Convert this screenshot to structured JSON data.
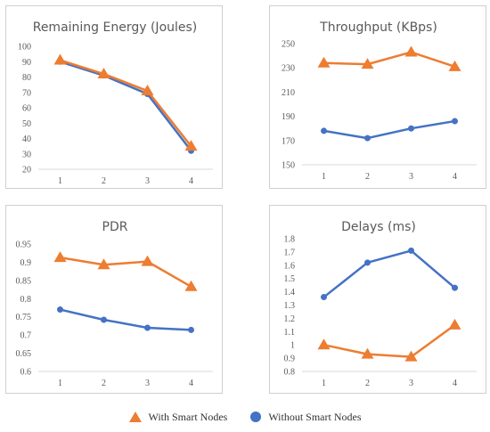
{
  "chart_data": [
    {
      "type": "line",
      "title": "Remaining Energy (Joules)",
      "categories": [
        "1",
        "2",
        "3",
        "4"
      ],
      "ylim": [
        20,
        100
      ],
      "yticks": [
        20,
        30,
        40,
        50,
        60,
        70,
        80,
        90,
        100
      ],
      "grid": false,
      "series": [
        {
          "name": "With Smart Nodes",
          "values": [
            91,
            82,
            71,
            35
          ]
        },
        {
          "name": "Without Smart Nodes",
          "values": [
            90,
            81,
            69,
            32
          ]
        }
      ]
    },
    {
      "type": "line",
      "title": "Throughput (KBps)",
      "categories": [
        "1",
        "2",
        "3",
        "4"
      ],
      "ylim": [
        150,
        250
      ],
      "yticks": [
        150,
        170,
        190,
        210,
        230,
        250
      ],
      "grid": false,
      "series": [
        {
          "name": "With Smart Nodes",
          "values": [
            234,
            233,
            243,
            231
          ]
        },
        {
          "name": "Without Smart Nodes",
          "values": [
            178,
            172,
            180,
            186
          ]
        }
      ]
    },
    {
      "type": "line",
      "title": "PDR",
      "categories": [
        "1",
        "2",
        "3",
        "4"
      ],
      "ylim": [
        0.6,
        0.95
      ],
      "yticks": [
        "0.6",
        "0.65",
        "0.7",
        "0.75",
        "0.8",
        "0.85",
        "0.9",
        "0.95"
      ],
      "grid": false,
      "series": [
        {
          "name": "With Smart Nodes",
          "values": [
            0.913,
            0.893,
            0.902,
            0.833
          ]
        },
        {
          "name": "Without Smart Nodes",
          "values": [
            0.77,
            0.742,
            0.72,
            0.714
          ]
        }
      ]
    },
    {
      "type": "line",
      "title": "Delays (ms)",
      "categories": [
        "1",
        "2",
        "3",
        "4"
      ],
      "ylim": [
        0.8,
        1.8
      ],
      "yticks": [
        "0.8",
        "0.9",
        "1",
        "1.1",
        "1.2",
        "1.3",
        "1.4",
        "1.5",
        "1.6",
        "1.7",
        "1.8"
      ],
      "grid": false,
      "series": [
        {
          "name": "With Smart Nodes",
          "values": [
            1.0,
            0.93,
            0.91,
            1.15
          ]
        },
        {
          "name": "Without Smart Nodes",
          "values": [
            1.36,
            1.62,
            1.71,
            1.43
          ]
        }
      ]
    }
  ],
  "legend": {
    "placement": "bottom-center",
    "items": [
      {
        "label": "With Smart Nodes",
        "marker": "triangle",
        "color": "#ED7D31"
      },
      {
        "label": "Without Smart Nodes",
        "marker": "circle",
        "color": "#4472C4"
      }
    ]
  },
  "colors": {
    "with_smart_nodes": "#ED7D31",
    "without_smart_nodes": "#4472C4"
  }
}
